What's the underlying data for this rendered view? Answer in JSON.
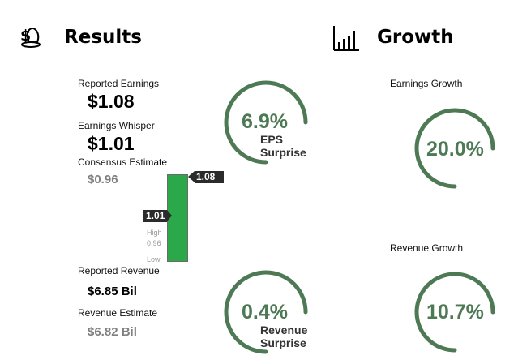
{
  "results": {
    "title": "Results",
    "icon": "money-bag-icon",
    "reported_earnings_label": "Reported Earnings",
    "reported_earnings_value": "$1.08",
    "earnings_whisper_label": "Earnings Whisper",
    "earnings_whisper_value": "$1.01",
    "consensus_label": "Consensus Estimate",
    "consensus_value": "$0.96",
    "reported_revenue_label": "Reported Revenue",
    "reported_revenue_value": "$6.85 Bil",
    "revenue_estimate_label": "Revenue Estimate",
    "revenue_estimate_value": "$6.82 Bil"
  },
  "eps_bar": {
    "top_tag": "1.08",
    "whisper_tag": "1.01",
    "high_label": "High",
    "mid_label": "0.96",
    "low_label": "Low",
    "color": "#2aa84a"
  },
  "gauges": {
    "eps_surprise": {
      "value": "6.9%",
      "line1": "EPS",
      "line2": "Surprise",
      "fraction": 0.75
    },
    "revenue_surprise": {
      "value": "0.4%",
      "line1": "Revenue",
      "line2": "Surprise",
      "fraction": 0.75
    },
    "earnings_growth": {
      "label": "Earnings Growth",
      "value": "20.0%",
      "fraction": 0.75
    },
    "revenue_growth": {
      "label": "Revenue Growth",
      "value": "10.7%",
      "fraction": 0.75
    }
  },
  "growth": {
    "title": "Growth",
    "icon": "bar-chart-icon"
  },
  "colors": {
    "gauge": "#4d7a55",
    "bar": "#2aa84a",
    "tag": "#2b2b2b"
  }
}
